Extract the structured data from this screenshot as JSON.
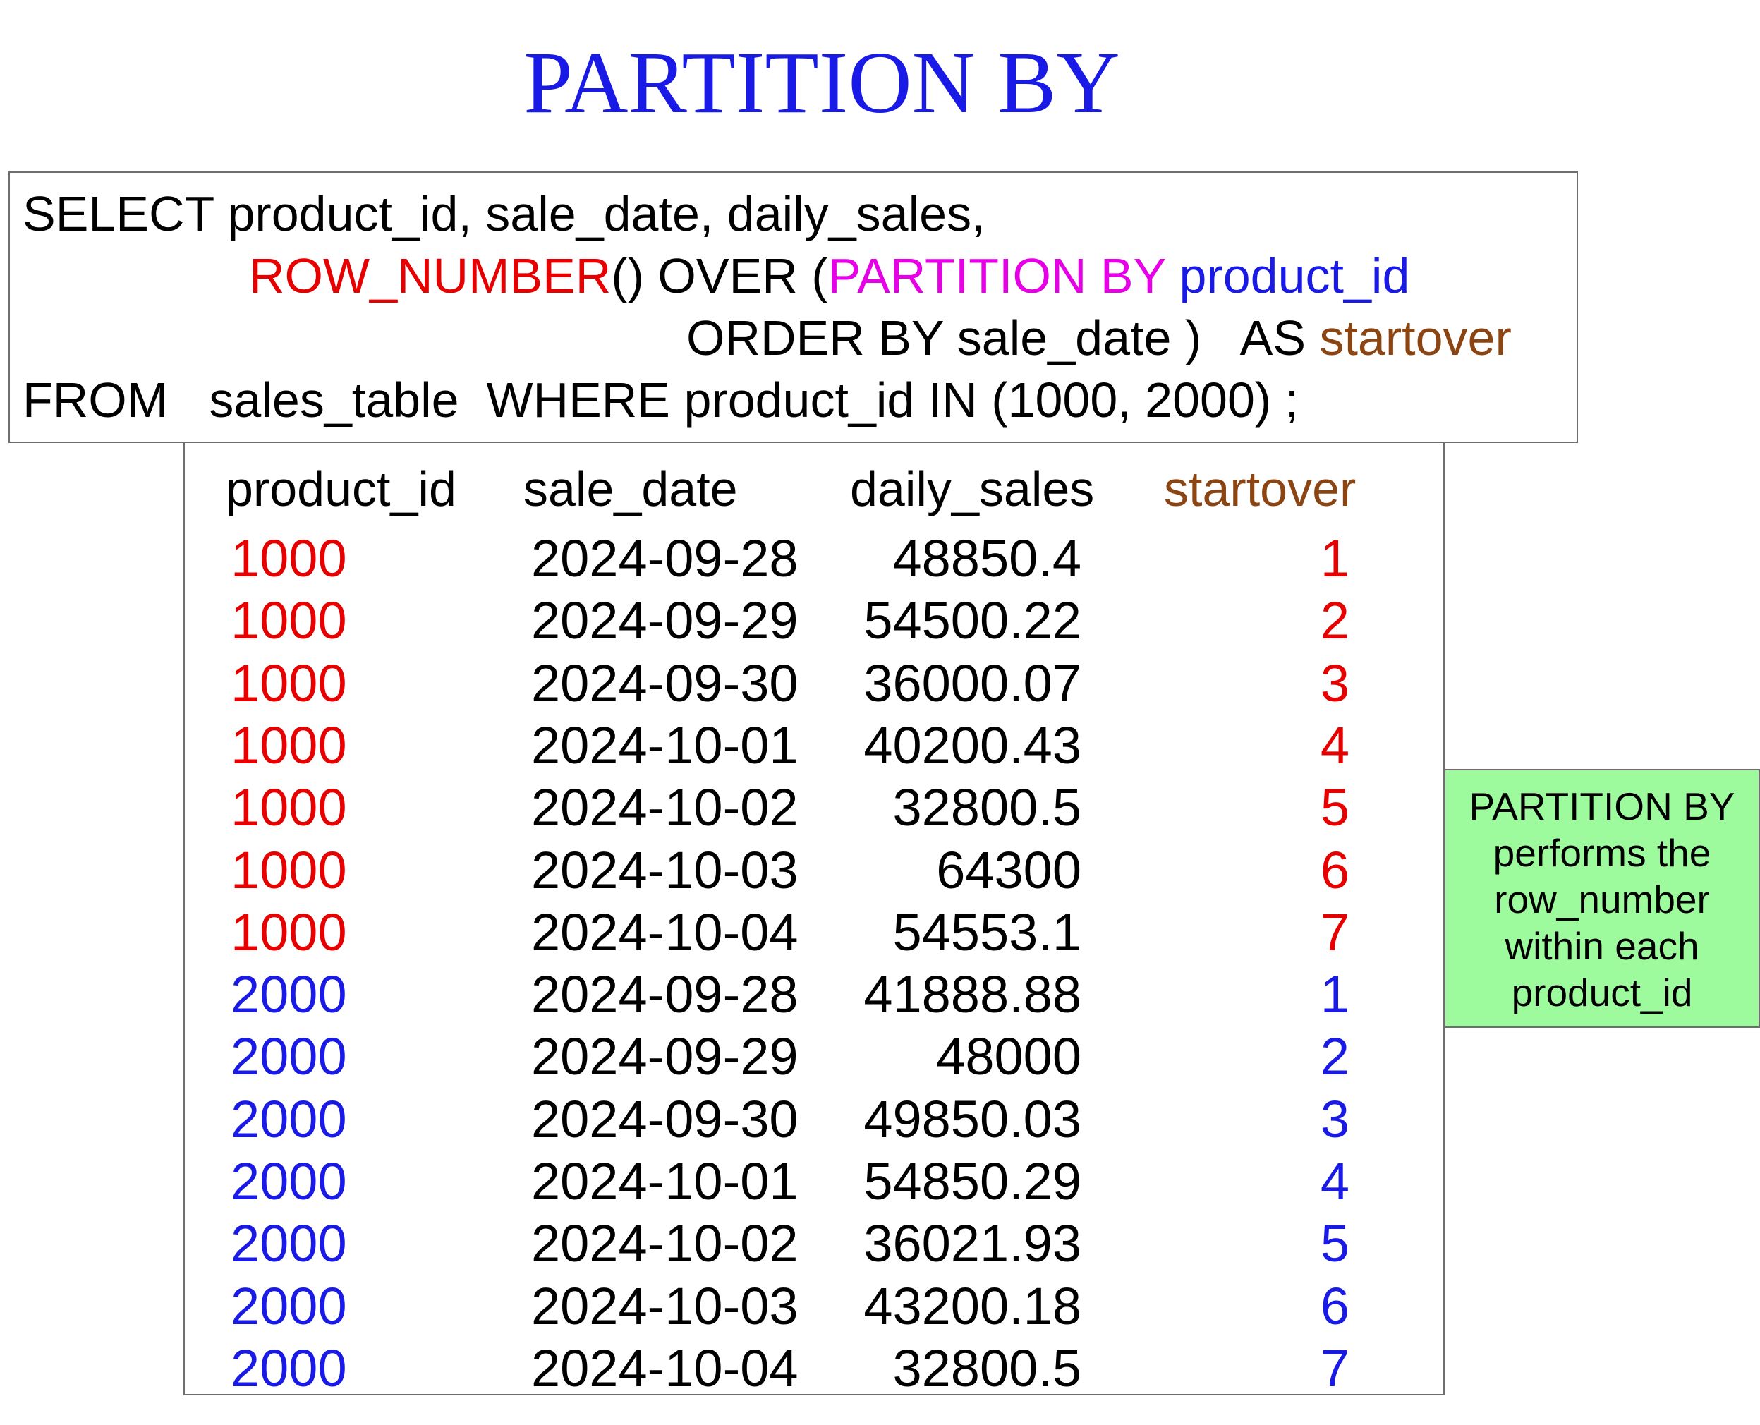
{
  "title": "PARTITION BY",
  "sql": {
    "line1": "SELECT product_id, sale_date, daily_sales,",
    "line2": {
      "fn": "ROW_NUMBER",
      "mid": "() OVER (",
      "partition": "PARTITION BY",
      "space": " ",
      "col": "product_id"
    },
    "line3": {
      "order": "ORDER BY sale_date )   AS ",
      "alias": "startover"
    },
    "line4": "FROM   sales_table  WHERE product_id IN (1000, 2000) ;"
  },
  "colors": {
    "group_1000": "#e60000",
    "group_2000": "#1a1ae6",
    "alias": "#8b4513",
    "partition_keyword": "#e600e6",
    "note_background": "#9dfb9d"
  },
  "table": {
    "headers": {
      "product_id": "product_id",
      "sale_date": "sale_date",
      "daily_sales": "daily_sales",
      "startover": "startover"
    },
    "rows": [
      {
        "product_id": "1000",
        "sale_date": "2024-09-28",
        "daily_sales": "48850.4",
        "startover": "1"
      },
      {
        "product_id": "1000",
        "sale_date": "2024-09-29",
        "daily_sales": "54500.22",
        "startover": "2"
      },
      {
        "product_id": "1000",
        "sale_date": "2024-09-30",
        "daily_sales": "36000.07",
        "startover": "3"
      },
      {
        "product_id": "1000",
        "sale_date": "2024-10-01",
        "daily_sales": "40200.43",
        "startover": "4"
      },
      {
        "product_id": "1000",
        "sale_date": "2024-10-02",
        "daily_sales": "32800.5",
        "startover": "5"
      },
      {
        "product_id": "1000",
        "sale_date": "2024-10-03",
        "daily_sales": "64300",
        "startover": "6"
      },
      {
        "product_id": "1000",
        "sale_date": "2024-10-04",
        "daily_sales": "54553.1",
        "startover": "7"
      },
      {
        "product_id": "2000",
        "sale_date": "2024-09-28",
        "daily_sales": "41888.88",
        "startover": "1"
      },
      {
        "product_id": "2000",
        "sale_date": "2024-09-29",
        "daily_sales": "48000",
        "startover": "2"
      },
      {
        "product_id": "2000",
        "sale_date": "2024-09-30",
        "daily_sales": "49850.03",
        "startover": "3"
      },
      {
        "product_id": "2000",
        "sale_date": "2024-10-01",
        "daily_sales": "54850.29",
        "startover": "4"
      },
      {
        "product_id": "2000",
        "sale_date": "2024-10-02",
        "daily_sales": "36021.93",
        "startover": "5"
      },
      {
        "product_id": "2000",
        "sale_date": "2024-10-03",
        "daily_sales": "43200.18",
        "startover": "6"
      },
      {
        "product_id": "2000",
        "sale_date": "2024-10-04",
        "daily_sales": "32800.5",
        "startover": "7"
      }
    ]
  },
  "note": {
    "lines": [
      "PARTITION BY",
      "performs the",
      "row_number",
      "within each",
      "product_id"
    ]
  }
}
